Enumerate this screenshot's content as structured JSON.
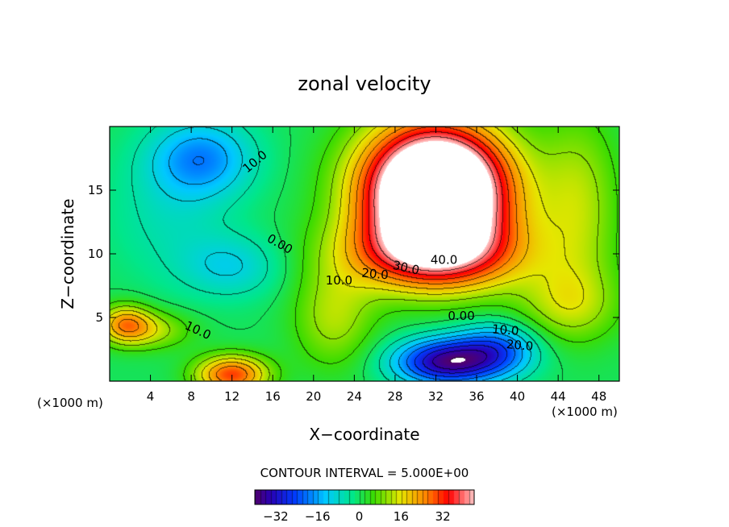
{
  "chart_data": {
    "type": "heatmap",
    "title": "zonal velocity",
    "xlabel": "X−coordinate",
    "ylabel": "Z−coordinate",
    "x_unit_label": "(×1000 m)",
    "z_unit_label": "(×1000 m)",
    "xlim": [
      0,
      50
    ],
    "zlim": [
      0,
      20
    ],
    "x_ticks": [
      {
        "value": 4,
        "label": "4"
      },
      {
        "value": 8,
        "label": "8"
      },
      {
        "value": 12,
        "label": "12"
      },
      {
        "value": 16,
        "label": "16"
      },
      {
        "value": 20,
        "label": "20"
      },
      {
        "value": 24,
        "label": "24"
      },
      {
        "value": 28,
        "label": "28"
      },
      {
        "value": 32,
        "label": "32"
      },
      {
        "value": 36,
        "label": "36"
      },
      {
        "value": 40,
        "label": "40"
      },
      {
        "value": 44,
        "label": "44"
      },
      {
        "value": 48,
        "label": "48"
      }
    ],
    "z_ticks": [
      {
        "value": 5,
        "label": "5"
      },
      {
        "value": 10,
        "label": "10"
      },
      {
        "value": 15,
        "label": "15"
      }
    ],
    "contour_interval_text": "CONTOUR INTERVAL = 5.000E+00",
    "contour_labels": [
      {
        "text": "10.0",
        "x": 14.5,
        "z": 17.0,
        "angle": -40
      },
      {
        "text": "0.00",
        "x": 16.5,
        "z": 10.5,
        "angle": 30
      },
      {
        "text": "10.0",
        "x": 22.5,
        "z": 7.6,
        "angle": 0
      },
      {
        "text": "20.0",
        "x": 26.0,
        "z": 8.1,
        "angle": 5
      },
      {
        "text": "30.0",
        "x": 29.0,
        "z": 8.6,
        "angle": 12
      },
      {
        "text": "40.0",
        "x": 32.8,
        "z": 9.2,
        "angle": 0
      },
      {
        "text": "0.00",
        "x": 34.5,
        "z": 4.8,
        "angle": 0
      },
      {
        "text": "10.0",
        "x": 8.5,
        "z": 3.7,
        "angle": 25
      },
      {
        "text": "10.0",
        "x": 38.8,
        "z": 3.7,
        "angle": 5
      },
      {
        "text": "20.0",
        "x": 40.2,
        "z": 2.5,
        "angle": 5
      }
    ],
    "features": [
      {
        "x": 9,
        "z": 17.5,
        "value": -18,
        "sx": 5,
        "sz": 3
      },
      {
        "x": 12,
        "z": 9,
        "value": -10,
        "sx": 5,
        "sz": 2.5
      },
      {
        "x": 6,
        "z": 13,
        "value": -6,
        "sx": 6,
        "sz": 5
      },
      {
        "x": 33,
        "z": 1.5,
        "value": -36,
        "sx": 5,
        "sz": 1.8
      },
      {
        "x": 38,
        "z": 2.5,
        "value": -20,
        "sx": 4,
        "sz": 2
      },
      {
        "x": 32,
        "z": 15,
        "value": 80,
        "sx": 7,
        "sz": 5
      },
      {
        "x": 32,
        "z": 10,
        "value": 30,
        "sx": 9,
        "sz": 3
      },
      {
        "x": 12,
        "z": 0.5,
        "value": 30,
        "sx": 3.5,
        "sz": 1.5
      },
      {
        "x": 1.5,
        "z": 4.5,
        "value": 20,
        "sx": 2.5,
        "sz": 1.5
      },
      {
        "x": 4,
        "z": 4,
        "value": 12,
        "sx": 4,
        "sz": 1.5
      },
      {
        "x": 45,
        "z": 6,
        "value": 12,
        "sx": 5,
        "sz": 3
      },
      {
        "x": 46,
        "z": 14,
        "value": 12,
        "sx": 4,
        "sz": 7
      },
      {
        "x": 22,
        "z": 5,
        "value": 12,
        "sx": 4,
        "sz": 4
      }
    ],
    "white_regions": [
      {
        "name": "upper-white-region",
        "x_range": [
          26,
          39
        ],
        "z_range": [
          9.5,
          20
        ],
        "value": "> 44"
      },
      {
        "name": "lower-white-region",
        "x_range": [
          31.5,
          36
        ],
        "z_range": [
          0,
          1
        ],
        "value": "< -36"
      }
    ],
    "colorbar": {
      "vmin": -40,
      "vmax": 44,
      "ticks": [
        {
          "value": -32,
          "label": "−32"
        },
        {
          "value": -16,
          "label": "−16"
        },
        {
          "value": 0,
          "label": "0"
        },
        {
          "value": 16,
          "label": "16"
        },
        {
          "value": 32,
          "label": "32"
        }
      ]
    }
  }
}
